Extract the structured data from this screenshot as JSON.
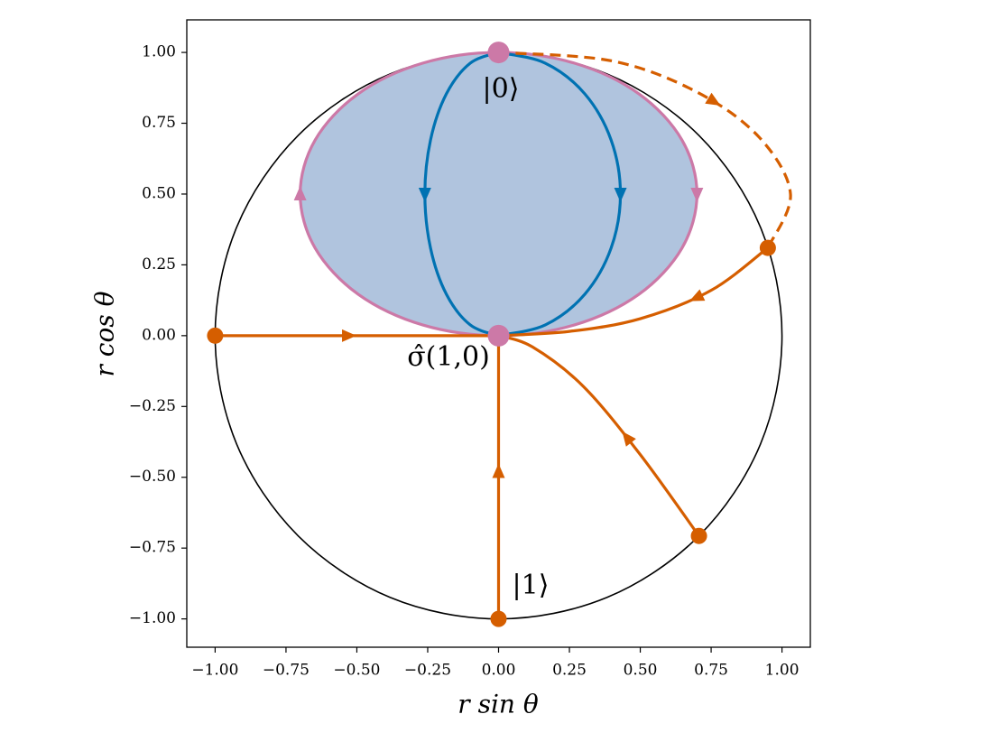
{
  "chart_data": {
    "type": "line",
    "xlabel": "r sin θ",
    "ylabel": "r cos θ",
    "xlim": [
      -1.1,
      1.1
    ],
    "ylim": [
      -1.1,
      1.115
    ],
    "xticks": [
      {
        "value": -1,
        "label": "−1.00"
      },
      {
        "value": -0.75,
        "label": "−0.75"
      },
      {
        "value": -0.5,
        "label": "−0.50"
      },
      {
        "value": -0.25,
        "label": "−0.25"
      },
      {
        "value": 0,
        "label": "0.00"
      },
      {
        "value": 0.25,
        "label": "0.25"
      },
      {
        "value": 0.5,
        "label": "0.50"
      },
      {
        "value": 0.75,
        "label": "0.75"
      },
      {
        "value": 1,
        "label": "1.00"
      }
    ],
    "yticks": [
      {
        "value": -1,
        "label": "−1.00"
      },
      {
        "value": -0.75,
        "label": "−0.75"
      },
      {
        "value": -0.5,
        "label": "−0.50"
      },
      {
        "value": -0.25,
        "label": "−0.25"
      },
      {
        "value": 0,
        "label": "0.00"
      },
      {
        "value": 0.25,
        "label": "0.25"
      },
      {
        "value": 0.5,
        "label": "0.50"
      },
      {
        "value": 0.75,
        "label": "0.75"
      },
      {
        "value": 1,
        "label": "1.00"
      }
    ],
    "annotations": [
      "|0⟩",
      "σ̂(1,0)",
      "|1⟩"
    ],
    "series": [
      {
        "type": "line",
        "color": "#000000",
        "closed": true,
        "x": [
          0,
          0.383,
          0.707,
          0.924,
          1,
          0.924,
          0.707,
          0.383,
          0,
          -0.383,
          -0.707,
          -0.924,
          -1,
          -0.924,
          -0.707,
          -0.383
        ],
        "values": [
          1,
          0.924,
          0.707,
          0.383,
          0,
          -0.383,
          -0.707,
          -0.924,
          -1,
          -0.924,
          -0.707,
          -0.383,
          0,
          0.383,
          0.707,
          0.924
        ]
      },
      {
        "type": "line",
        "color": "#cc79a7",
        "fill": "#b0c4de",
        "closed": true,
        "x": [
          0,
          0.268,
          0.495,
          0.647,
          0.7,
          0.647,
          0.495,
          0.268,
          0,
          -0.268,
          -0.495,
          -0.647,
          -0.7,
          -0.647,
          -0.495,
          -0.268
        ],
        "values": [
          1,
          0.962,
          0.854,
          0.691,
          0.5,
          0.309,
          0.146,
          0.038,
          0,
          0.038,
          0.146,
          0.309,
          0.5,
          0.691,
          0.854,
          0.962
        ]
      },
      {
        "type": "line",
        "color": "#0072b2",
        "x": [
          0,
          0.165,
          0.304,
          0.397,
          0.43,
          0.397,
          0.304,
          0.165,
          0
        ],
        "values": [
          1,
          0.962,
          0.854,
          0.691,
          0.5,
          0.309,
          0.146,
          0.038,
          0
        ]
      },
      {
        "type": "line",
        "color": "#0072b2",
        "x": [
          0,
          -0.1,
          -0.184,
          -0.24,
          -0.26,
          -0.24,
          -0.184,
          -0.1,
          0
        ],
        "values": [
          1,
          0.962,
          0.854,
          0.691,
          0.5,
          0.309,
          0.146,
          0.038,
          0
        ]
      },
      {
        "type": "line",
        "color": "#d55e00",
        "x": [
          -1,
          0
        ],
        "values": [
          0,
          0
        ]
      },
      {
        "type": "line",
        "color": "#d55e00",
        "x": [
          0,
          0
        ],
        "values": [
          -1,
          0
        ]
      },
      {
        "type": "line",
        "color": "#d55e00",
        "x": [
          0.707,
          0.5,
          0.3,
          0.12,
          0
        ],
        "values": [
          -0.707,
          -0.42,
          -0.18,
          -0.04,
          0
        ]
      },
      {
        "type": "line",
        "color": "#d55e00",
        "x": [
          0.95,
          0.75,
          0.5,
          0.25,
          0
        ],
        "values": [
          0.31,
          0.16,
          0.06,
          0.015,
          0
        ]
      },
      {
        "type": "line",
        "color": "#d55e00",
        "dashed": true,
        "x": [
          0,
          0.4,
          0.7,
          0.92,
          1.03,
          0.95
        ],
        "values": [
          1,
          0.97,
          0.86,
          0.7,
          0.5,
          0.31
        ]
      },
      {
        "type": "scatter",
        "color": "#d55e00",
        "x": [
          -1,
          0,
          0.707,
          0.95
        ],
        "values": [
          0,
          -1,
          -0.707,
          0.31
        ]
      },
      {
        "type": "scatter",
        "color": "#cc79a7",
        "large": true,
        "x": [
          0,
          0
        ],
        "values": [
          1,
          0
        ]
      }
    ]
  }
}
